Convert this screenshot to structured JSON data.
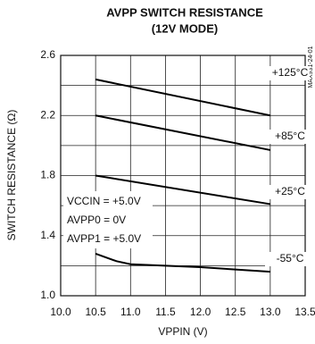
{
  "chart_data": {
    "type": "line",
    "title": "AVPP SWITCH RESISTANCE",
    "subtitle": "(12V MODE)",
    "x_label": "VPPIN (V)",
    "y_label": "SWITCH RESISTANCE (Ω)",
    "side_note": "MAX931-24-01",
    "annotations": [
      "VCCIN = +5.0V",
      "AVPP0 = 0V",
      "AVPP1 = +5.0V"
    ],
    "xlim": [
      10.0,
      13.5
    ],
    "xticks": [
      {
        "value": 10,
        "label": "10.0"
      },
      10.5,
      {
        "value": 11,
        "label": "11.0"
      },
      11.5,
      {
        "value": 12,
        "label": "12.0"
      },
      12.5,
      {
        "value": 13,
        "label": "13.0"
      },
      13.5
    ],
    "ylim": [
      1.0,
      2.6
    ],
    "yticks": [
      {
        "value": 1,
        "label": "1.0"
      },
      1.4,
      1.8,
      2.2,
      2.6
    ],
    "yminor_grid": [
      1.2,
      1.6,
      2.0,
      2.4
    ],
    "grid": true,
    "series": [
      {
        "name": "+125°C",
        "color": "#000000",
        "x": [
          10.5,
          13.0
        ],
        "values": [
          2.44,
          2.2
        ]
      },
      {
        "name": "+85°C",
        "color": "#000000",
        "x": [
          10.5,
          13.0
        ],
        "values": [
          2.2,
          1.97
        ]
      },
      {
        "name": "+25°C",
        "color": "#000000",
        "x": [
          10.5,
          13.0
        ],
        "values": [
          1.8,
          1.61
        ]
      },
      {
        "name": "-55°C",
        "color": "#000000",
        "x": [
          10.5,
          10.8,
          11.0,
          12.0,
          13.0
        ],
        "values": [
          1.28,
          1.23,
          1.21,
          1.19,
          1.16
        ]
      }
    ]
  }
}
